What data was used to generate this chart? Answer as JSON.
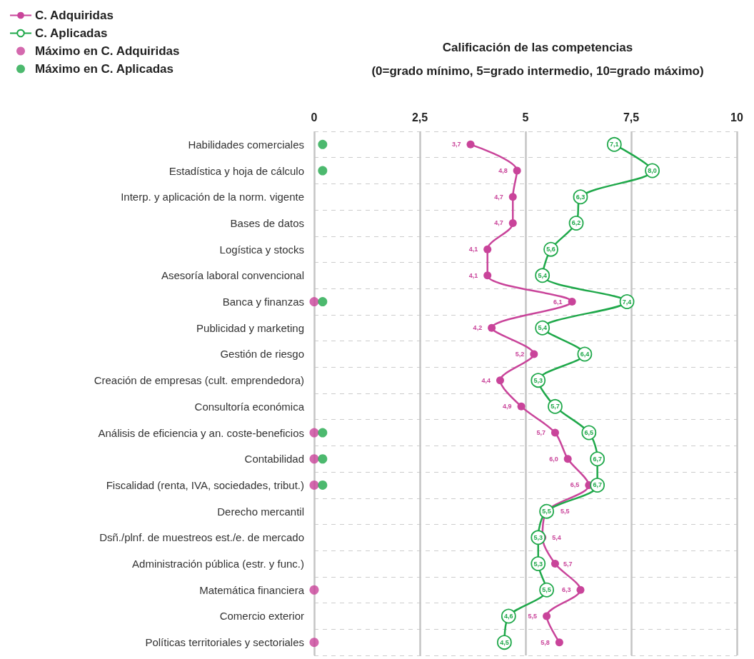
{
  "chart_data": {
    "type": "line",
    "title": "Calificación de las competencias",
    "subtitle": "(0=grado mínimo, 5=grado intermedio, 10=grado máximo)",
    "categories": [
      "Habilidades comerciales",
      "Estadística y hoja de cálculo",
      "Interp. y aplicación de la norm. vigente",
      "Bases de datos",
      "Logística y stocks",
      "Asesoría laboral convencional",
      "Banca y finanzas",
      "Publicidad y marketing",
      "Gestión de riesgo",
      "Creación de empresas (cult. emprendedora)",
      "Consultoría económica",
      "Análisis de eficiencia y an. coste-beneficios",
      "Contabilidad",
      "Fiscalidad (renta, IVA, sociedades, tribut.)",
      "Derecho mercantil",
      "Dsñ./plnf. de muestreos est./e. de mercado",
      "Administración pública (estr. y func.)",
      "Matemática financiera",
      "Comercio exterior",
      "Políticas territoriales y sectoriales"
    ],
    "orientation": "horizontal",
    "series": [
      {
        "name": "C. Adquiridas",
        "color": "#c9449a",
        "values": [
          3.7,
          4.8,
          4.7,
          4.7,
          4.1,
          4.1,
          6.1,
          4.2,
          5.2,
          4.4,
          4.9,
          5.7,
          6.0,
          6.5,
          5.5,
          5.4,
          5.7,
          6.3,
          5.5,
          5.8
        ],
        "value_labels": [
          "3,7",
          "4,8",
          "4,7",
          "4,7",
          "4,1",
          "4,1",
          "6,1",
          "4,2",
          "5,2",
          "4,4",
          "4,9",
          "5,7",
          "6,0",
          "6,5",
          "5,5",
          "5,4",
          "5,7",
          "6,3",
          "5,5",
          "5,8"
        ]
      },
      {
        "name": "C. Aplicadas",
        "color": "#1fa84a",
        "values": [
          7.1,
          8.0,
          6.3,
          6.2,
          5.6,
          5.4,
          7.4,
          5.4,
          6.4,
          5.3,
          5.7,
          6.5,
          6.7,
          6.7,
          5.5,
          5.3,
          5.3,
          5.5,
          4.6,
          4.5
        ],
        "value_labels": [
          "7,1",
          "8,0",
          "6,3",
          "6,2",
          "5,6",
          "5,4",
          "7,4",
          "5,4",
          "6,4",
          "5,3",
          "5,7",
          "6,5",
          "6,7",
          "6,7",
          "5,5",
          "5,3",
          "5,3",
          "5,5",
          "4,6",
          "4,5"
        ]
      },
      {
        "name": "Máximo en C. Adquiridas",
        "color": "#c9449a",
        "type": "scatter",
        "values": [
          null,
          null,
          null,
          null,
          null,
          null,
          0,
          null,
          null,
          null,
          null,
          0,
          0,
          0,
          null,
          null,
          null,
          0,
          null,
          0
        ]
      },
      {
        "name": "Máximo en C. Aplicadas",
        "color": "#1fa84a",
        "type": "scatter",
        "values": [
          0.2,
          0.2,
          null,
          null,
          null,
          null,
          0.2,
          null,
          null,
          null,
          null,
          0.2,
          0.2,
          0.2,
          null,
          null,
          null,
          null,
          null,
          null
        ]
      }
    ],
    "xlim": [
      0,
      10
    ],
    "xticks": [
      0,
      {
        "value": 2.5,
        "label": "2,5"
      },
      5,
      {
        "value": 7.5,
        "label": "7,5"
      },
      10
    ],
    "grid": true,
    "legend": "top left",
    "marker": "circle"
  }
}
